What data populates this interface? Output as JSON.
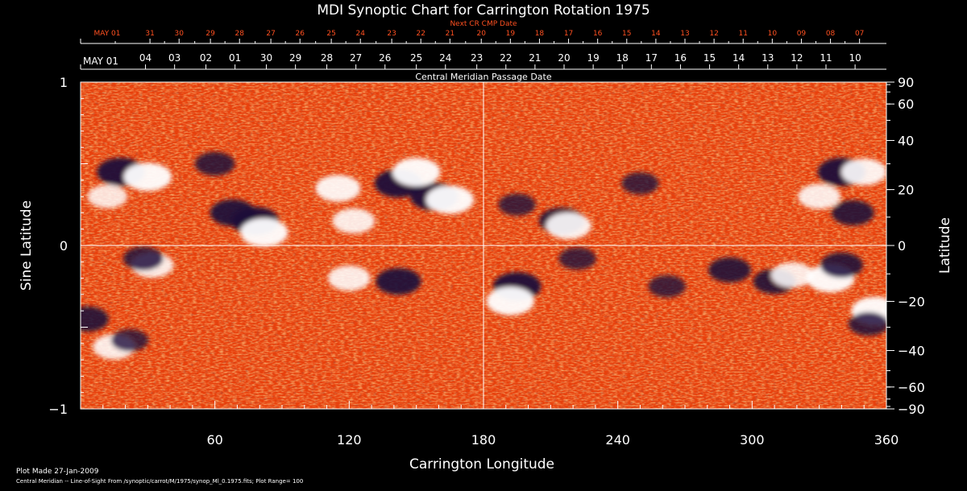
{
  "chart_data": {
    "type": "heatmap",
    "title": "MDI Synoptic Chart for Carrington Rotation 1975",
    "next_cmp_label": "Next CR CMP Date",
    "cmp_label": "Central Meridian Passage Date",
    "xlabel": "Carrington Longitude",
    "ylabel_left": "Sine Latitude",
    "ylabel_right": "Latitude",
    "xlim": [
      0,
      360
    ],
    "ylim": [
      -1,
      1
    ],
    "x_ticks": [
      60,
      120,
      180,
      240,
      300,
      360
    ],
    "y_ticks_left": [
      {
        "v": 1,
        "label": "1"
      },
      {
        "v": 0,
        "label": "0"
      },
      {
        "v": -1,
        "label": "−1"
      }
    ],
    "y_ticks_right": [
      {
        "lat": 90,
        "label": "90"
      },
      {
        "lat": 60,
        "label": "60"
      },
      {
        "lat": 40,
        "label": "40"
      },
      {
        "lat": 20,
        "label": "20"
      },
      {
        "lat": 0,
        "label": "0"
      },
      {
        "lat": -20,
        "label": "−20"
      },
      {
        "lat": -40,
        "label": "−40"
      },
      {
        "lat": -60,
        "label": "−60"
      },
      {
        "lat": -90,
        "label": "−90"
      }
    ],
    "reference_lines": {
      "longitude": 180,
      "sine_latitude": 0
    },
    "next_cr_dates": [
      {
        "lon": 0,
        "label": "MAY 01"
      },
      {
        "lon": 31,
        "label": "31"
      },
      {
        "lon": 44,
        "label": "30"
      },
      {
        "lon": 58,
        "label": "29"
      },
      {
        "lon": 71,
        "label": "28"
      },
      {
        "lon": 85,
        "label": "27"
      },
      {
        "lon": 98,
        "label": "26"
      },
      {
        "lon": 112,
        "label": "25"
      },
      {
        "lon": 125,
        "label": "24"
      },
      {
        "lon": 139,
        "label": "23"
      },
      {
        "lon": 152,
        "label": "22"
      },
      {
        "lon": 165,
        "label": "21"
      },
      {
        "lon": 179,
        "label": "20"
      },
      {
        "lon": 192,
        "label": "19"
      },
      {
        "lon": 205,
        "label": "18"
      },
      {
        "lon": 218,
        "label": "17"
      },
      {
        "lon": 231,
        "label": "16"
      },
      {
        "lon": 244,
        "label": "15"
      },
      {
        "lon": 257,
        "label": "14"
      },
      {
        "lon": 270,
        "label": "13"
      },
      {
        "lon": 283,
        "label": "12"
      },
      {
        "lon": 296,
        "label": "11"
      },
      {
        "lon": 309,
        "label": "10"
      },
      {
        "lon": 322,
        "label": "09"
      },
      {
        "lon": 335,
        "label": "08"
      },
      {
        "lon": 348,
        "label": "07"
      }
    ],
    "cmp_dates": [
      {
        "lon": 0,
        "label": "MAY 01"
      },
      {
        "lon": 29,
        "label": "04"
      },
      {
        "lon": 42,
        "label": "03"
      },
      {
        "lon": 56,
        "label": "02"
      },
      {
        "lon": 69,
        "label": "01"
      },
      {
        "lon": 83,
        "label": "30"
      },
      {
        "lon": 96,
        "label": "29"
      },
      {
        "lon": 110,
        "label": "28"
      },
      {
        "lon": 123,
        "label": "27"
      },
      {
        "lon": 136,
        "label": "26"
      },
      {
        "lon": 150,
        "label": "25"
      },
      {
        "lon": 163,
        "label": "24"
      },
      {
        "lon": 177,
        "label": "23"
      },
      {
        "lon": 190,
        "label": "22"
      },
      {
        "lon": 203,
        "label": "21"
      },
      {
        "lon": 216,
        "label": "20"
      },
      {
        "lon": 229,
        "label": "19"
      },
      {
        "lon": 242,
        "label": "18"
      },
      {
        "lon": 255,
        "label": "17"
      },
      {
        "lon": 268,
        "label": "16"
      },
      {
        "lon": 281,
        "label": "15"
      },
      {
        "lon": 294,
        "label": "14"
      },
      {
        "lon": 307,
        "label": "13"
      },
      {
        "lon": 320,
        "label": "12"
      },
      {
        "lon": 333,
        "label": "11"
      },
      {
        "lon": 346,
        "label": "10"
      }
    ],
    "features": [
      {
        "lon": 18,
        "sinlat": 0.45,
        "polarity": "neg",
        "strength": 1.0
      },
      {
        "lon": 30,
        "sinlat": 0.42,
        "polarity": "pos",
        "strength": 1.0
      },
      {
        "lon": 12,
        "sinlat": 0.3,
        "polarity": "pos",
        "strength": 0.7
      },
      {
        "lon": 60,
        "sinlat": 0.5,
        "polarity": "neg",
        "strength": 0.7
      },
      {
        "lon": 68,
        "sinlat": 0.2,
        "polarity": "neg",
        "strength": 0.9
      },
      {
        "lon": 78,
        "sinlat": 0.15,
        "polarity": "neg",
        "strength": 1.0
      },
      {
        "lon": 82,
        "sinlat": 0.08,
        "polarity": "pos",
        "strength": 1.0
      },
      {
        "lon": 115,
        "sinlat": 0.35,
        "polarity": "pos",
        "strength": 0.9
      },
      {
        "lon": 122,
        "sinlat": 0.15,
        "polarity": "pos",
        "strength": 0.8
      },
      {
        "lon": 142,
        "sinlat": 0.38,
        "polarity": "neg",
        "strength": 1.0
      },
      {
        "lon": 158,
        "sinlat": 0.3,
        "polarity": "neg",
        "strength": 1.0
      },
      {
        "lon": 150,
        "sinlat": 0.45,
        "polarity": "pos",
        "strength": 1.0
      },
      {
        "lon": 165,
        "sinlat": 0.28,
        "polarity": "pos",
        "strength": 1.0
      },
      {
        "lon": 195,
        "sinlat": 0.25,
        "polarity": "neg",
        "strength": 0.6
      },
      {
        "lon": 215,
        "sinlat": 0.15,
        "polarity": "neg",
        "strength": 0.9
      },
      {
        "lon": 218,
        "sinlat": 0.12,
        "polarity": "pos",
        "strength": 0.9
      },
      {
        "lon": 250,
        "sinlat": 0.38,
        "polarity": "neg",
        "strength": 0.6
      },
      {
        "lon": 340,
        "sinlat": 0.45,
        "polarity": "neg",
        "strength": 1.0
      },
      {
        "lon": 350,
        "sinlat": 0.45,
        "polarity": "pos",
        "strength": 0.9
      },
      {
        "lon": 330,
        "sinlat": 0.3,
        "polarity": "pos",
        "strength": 0.8
      },
      {
        "lon": 345,
        "sinlat": 0.2,
        "polarity": "neg",
        "strength": 0.8
      },
      {
        "lon": 32,
        "sinlat": -0.12,
        "polarity": "pos",
        "strength": 0.8
      },
      {
        "lon": 28,
        "sinlat": -0.08,
        "polarity": "neg",
        "strength": 0.7
      },
      {
        "lon": 120,
        "sinlat": -0.2,
        "polarity": "pos",
        "strength": 0.8
      },
      {
        "lon": 142,
        "sinlat": -0.22,
        "polarity": "neg",
        "strength": 0.9
      },
      {
        "lon": 195,
        "sinlat": -0.25,
        "polarity": "neg",
        "strength": 1.0
      },
      {
        "lon": 192,
        "sinlat": -0.34,
        "polarity": "pos",
        "strength": 1.0
      },
      {
        "lon": 222,
        "sinlat": -0.08,
        "polarity": "neg",
        "strength": 0.6
      },
      {
        "lon": 262,
        "sinlat": -0.25,
        "polarity": "neg",
        "strength": 0.6
      },
      {
        "lon": 290,
        "sinlat": -0.15,
        "polarity": "neg",
        "strength": 0.8
      },
      {
        "lon": 310,
        "sinlat": -0.22,
        "polarity": "neg",
        "strength": 0.8
      },
      {
        "lon": 318,
        "sinlat": -0.18,
        "polarity": "pos",
        "strength": 0.8
      },
      {
        "lon": 335,
        "sinlat": -0.2,
        "polarity": "pos",
        "strength": 1.0
      },
      {
        "lon": 340,
        "sinlat": -0.12,
        "polarity": "neg",
        "strength": 0.8
      },
      {
        "lon": 355,
        "sinlat": -0.4,
        "polarity": "pos",
        "strength": 1.0
      },
      {
        "lon": 352,
        "sinlat": -0.48,
        "polarity": "neg",
        "strength": 0.7
      },
      {
        "lon": 3,
        "sinlat": -0.45,
        "polarity": "neg",
        "strength": 0.8
      },
      {
        "lon": 15,
        "sinlat": -0.62,
        "polarity": "pos",
        "strength": 0.8
      },
      {
        "lon": 22,
        "sinlat": -0.58,
        "polarity": "neg",
        "strength": 0.6
      }
    ],
    "colors": {
      "background": "#000000",
      "field_base": "#e8400c",
      "positive": "#ffffff",
      "negative": "#1a0a3a",
      "next_cr_text": "#ff5020",
      "axis": "#ffffff"
    },
    "grid": false
  },
  "footer": {
    "plot_made": "Plot Made 27-Jan-2009",
    "source_line": "Central Meridian -- Line-of-Sight From /synoptic/carrot/M/1975/synop_Ml_0.1975.fits; Plot Range=  100"
  }
}
